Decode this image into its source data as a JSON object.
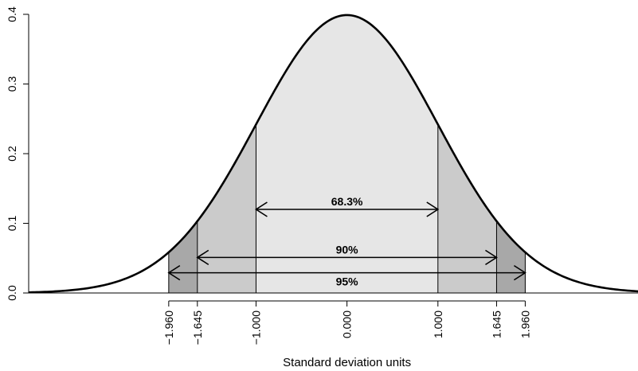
{
  "chart_data": {
    "type": "area",
    "distribution": "standard normal density",
    "xlabel": "Standard deviation units",
    "ylabel": "",
    "xlim": [
      -3.5,
      3.2
    ],
    "ylim": [
      0,
      0.4
    ],
    "y_ticks": [
      0.0,
      0.1,
      0.2,
      0.3,
      0.4
    ],
    "y_tick_labels": [
      "0.0",
      "0.1",
      "0.2",
      "0.3",
      "0.4"
    ],
    "x_ticks": [
      -1.96,
      -1.645,
      -1.0,
      0.0,
      1.0,
      1.645,
      1.96
    ],
    "x_tick_labels": [
      "−1.960",
      "−1.645",
      "−1.000",
      "0.000",
      "1.000",
      "1.645",
      "1.960"
    ],
    "shaded_regions": [
      {
        "from": -1.96,
        "to": 1.96,
        "color": "#a8a8a8"
      },
      {
        "from": -1.645,
        "to": 1.645,
        "color": "#cbcbcb"
      },
      {
        "from": -1.0,
        "to": 1.0,
        "color": "#e6e6e6"
      }
    ],
    "intervals": [
      {
        "label": "68.3%",
        "from": -1.0,
        "to": 1.0,
        "y": 0.12
      },
      {
        "label": "90%",
        "from": -1.645,
        "to": 1.645,
        "y": 0.051
      },
      {
        "label": "95%",
        "from": -1.96,
        "to": 1.96,
        "y": 0.029
      }
    ],
    "grid": false,
    "legend": "none"
  }
}
